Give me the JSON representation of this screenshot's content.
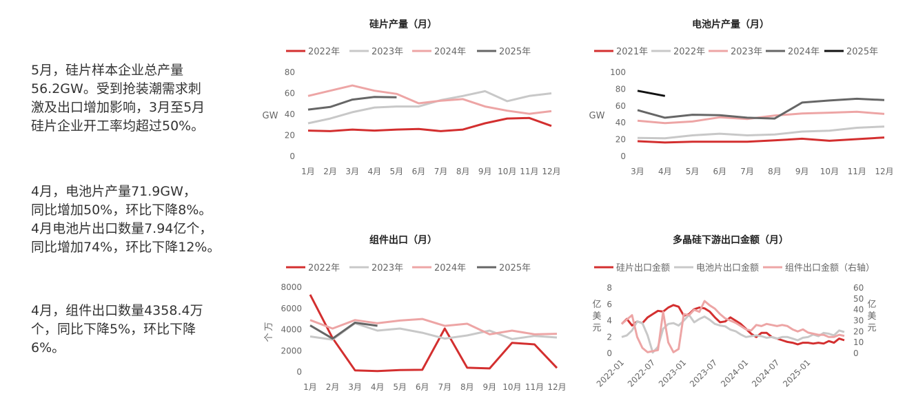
{
  "text_blocks": [
    "5月，硅片样本企业总产量\n56.2GW。受到抢装潮需求刺\n激及出口增加影响，3月至5月\n硅片企业开工率均超过50%。",
    "4月，电池片产量71.9GW，\n同比增加50%，环比下降8%。\n4月电池片出口数量7.94亿个，\n同比增加74%，环比下降12%。",
    "4月，组件出口数量4358.4万\n个，同比下降5%，环比下降\n6%。"
  ],
  "chart_data": [
    {
      "type": "line",
      "title": "硅片产量（月）",
      "ylabel": "GW",
      "ylim": [
        0,
        80
      ],
      "yticks": [
        0,
        20,
        40,
        60,
        80
      ],
      "categories": [
        "1月",
        "2月",
        "3月",
        "4月",
        "5月",
        "6月",
        "7月",
        "8月",
        "9月",
        "10月",
        "11月",
        "12月"
      ],
      "series": [
        {
          "name": "2022年",
          "color": "#d32f2f",
          "values": [
            24.5,
            24,
            25.5,
            24.5,
            25.5,
            26,
            24,
            25.5,
            31.5,
            36,
            36.5,
            29
          ]
        },
        {
          "name": "2023年",
          "color": "#c8c8c8",
          "values": [
            31.5,
            36,
            42,
            46.5,
            47.5,
            47.5,
            53.5,
            57.5,
            62,
            52.5,
            57.5,
            60
          ]
        },
        {
          "name": "2024年",
          "color": "#eda5a5",
          "values": [
            57.5,
            62.5,
            67.5,
            62.5,
            59.5,
            50.5,
            53,
            54.5,
            47.5,
            43.5,
            40.5,
            43
          ]
        },
        {
          "name": "2025年",
          "color": "#666666",
          "values": [
            44.5,
            47,
            54,
            56.5,
            56.2,
            null,
            null,
            null,
            null,
            null,
            null,
            null
          ]
        }
      ]
    },
    {
      "type": "line",
      "title": "电池片产量（月）",
      "ylabel": "GW",
      "ylim": [
        0,
        100
      ],
      "yticks": [
        0,
        20,
        40,
        60,
        80,
        100
      ],
      "categories": [
        "3月",
        "4月",
        "5月",
        "6月",
        "7月",
        "8月",
        "9月",
        "10月",
        "11月",
        "12月"
      ],
      "series": [
        {
          "name": "2021年",
          "color": "#d32f2f",
          "values": [
            18,
            16.5,
            17.5,
            17.5,
            17.5,
            19,
            21,
            18.5,
            20.5,
            22.5
          ]
        },
        {
          "name": "2022年",
          "color": "#c8c8c8",
          "values": [
            22,
            21.5,
            25,
            27,
            25,
            26,
            29.5,
            30.5,
            34,
            35.5
          ]
        },
        {
          "name": "2023年",
          "color": "#eda5a5",
          "values": [
            42.5,
            39.5,
            41.5,
            46.5,
            44.5,
            48.5,
            51,
            52,
            53,
            50.5
          ]
        },
        {
          "name": "2024年",
          "color": "#666666",
          "values": [
            55,
            46,
            49.5,
            49,
            46,
            45,
            64,
            66.5,
            68.5,
            67
          ]
        },
        {
          "name": "2025年",
          "color": "#111111",
          "values": [
            78,
            71.9,
            null,
            null,
            null,
            null,
            null,
            null,
            null,
            null
          ]
        }
      ]
    },
    {
      "type": "line",
      "title": "组件出口（月）",
      "ylabel": "万个",
      "ylim": [
        0,
        8000
      ],
      "yticks": [
        0,
        2000,
        4000,
        6000,
        8000
      ],
      "categories": [
        "1月",
        "2月",
        "3月",
        "4月",
        "5月",
        "6月",
        "7月",
        "8月",
        "9月",
        "10月",
        "11月",
        "12月"
      ],
      "series": [
        {
          "name": "2022年",
          "color": "#d32f2f",
          "values": [
            7300,
            3200,
            150,
            80,
            180,
            200,
            4100,
            400,
            330,
            2750,
            2600,
            380
          ]
        },
        {
          "name": "2023年",
          "color": "#c8c8c8",
          "values": [
            3350,
            3050,
            4600,
            3900,
            4100,
            3700,
            3150,
            3450,
            3900,
            3100,
            3400,
            3250
          ]
        },
        {
          "name": "2024年",
          "color": "#eda5a5",
          "values": [
            4900,
            4100,
            4900,
            4600,
            4850,
            5000,
            4350,
            4550,
            3550,
            3900,
            3550,
            3600
          ]
        },
        {
          "name": "2025年",
          "color": "#666666",
          "values": [
            4400,
            3150,
            4650,
            4358.4,
            null,
            null,
            null,
            null,
            null,
            null,
            null,
            null
          ]
        }
      ]
    },
    {
      "type": "line",
      "title": "多晶硅下游出口金额（月）",
      "ylabel": "亿美元",
      "y2label": "亿美元",
      "ylim": [
        0,
        8
      ],
      "yticks": [
        0,
        2,
        4,
        6,
        8
      ],
      "y2lim": [
        0,
        60
      ],
      "y2ticks": [
        0,
        10,
        20,
        30,
        40,
        50,
        60
      ],
      "x_tick_labels": [
        "2022-01",
        "2022-07",
        "2023-01",
        "2023-07",
        "2024-01",
        "2024-07",
        "2025-01"
      ],
      "x_start": "2022-01",
      "series": [
        {
          "name": "硅片出口金额",
          "color": "#d32f2f",
          "axis": "left",
          "values": [
            3.6,
            4.2,
            3.4,
            3.9,
            3.7,
            4.4,
            4.8,
            5.2,
            5.1,
            5.6,
            5.9,
            5.7,
            4.6,
            4.8,
            5.4,
            5.6,
            5.5,
            5.1,
            4.4,
            3.8,
            3.9,
            4.4,
            4.0,
            3.6,
            3.0,
            2.4,
            2.0,
            2.5,
            2.5,
            2.0,
            1.8,
            1.6,
            1.4,
            1.3,
            1.1,
            1.3,
            1.3,
            1.2,
            1.3,
            1.2,
            1.5,
            1.3,
            1.8,
            1.6
          ]
        },
        {
          "name": "电池片出口金额",
          "color": "#c8c8c8",
          "axis": "left",
          "values": [
            2.0,
            2.2,
            2.8,
            3.9,
            3.7,
            2.2,
            0.1,
            0.8,
            3.0,
            3.6,
            3.7,
            3.4,
            4.0,
            4.7,
            3.8,
            4.2,
            4.5,
            4.1,
            3.6,
            3.4,
            3.3,
            2.9,
            2.7,
            2.3,
            2.0,
            2.1,
            2.2,
            2.1,
            1.9,
            2.0,
            1.8,
            2.0,
            2.0,
            1.8,
            1.6,
            1.9,
            2.0,
            2.3,
            2.1,
            2.5,
            2.4,
            2.2,
            2.8,
            2.6
          ]
        },
        {
          "name": "组件出口金额（右轴）",
          "color": "#eda5a5",
          "axis": "right",
          "values": [
            27,
            31,
            35,
            15,
            5,
            1,
            2,
            3,
            38,
            10,
            1,
            4,
            36,
            35,
            40,
            38,
            48,
            44,
            41,
            36,
            32,
            30,
            28,
            25,
            22,
            21,
            26,
            25,
            27,
            26,
            25,
            26,
            25,
            22,
            20,
            22,
            19,
            18,
            17,
            17,
            15,
            15,
            17,
            16
          ]
        }
      ]
    }
  ]
}
